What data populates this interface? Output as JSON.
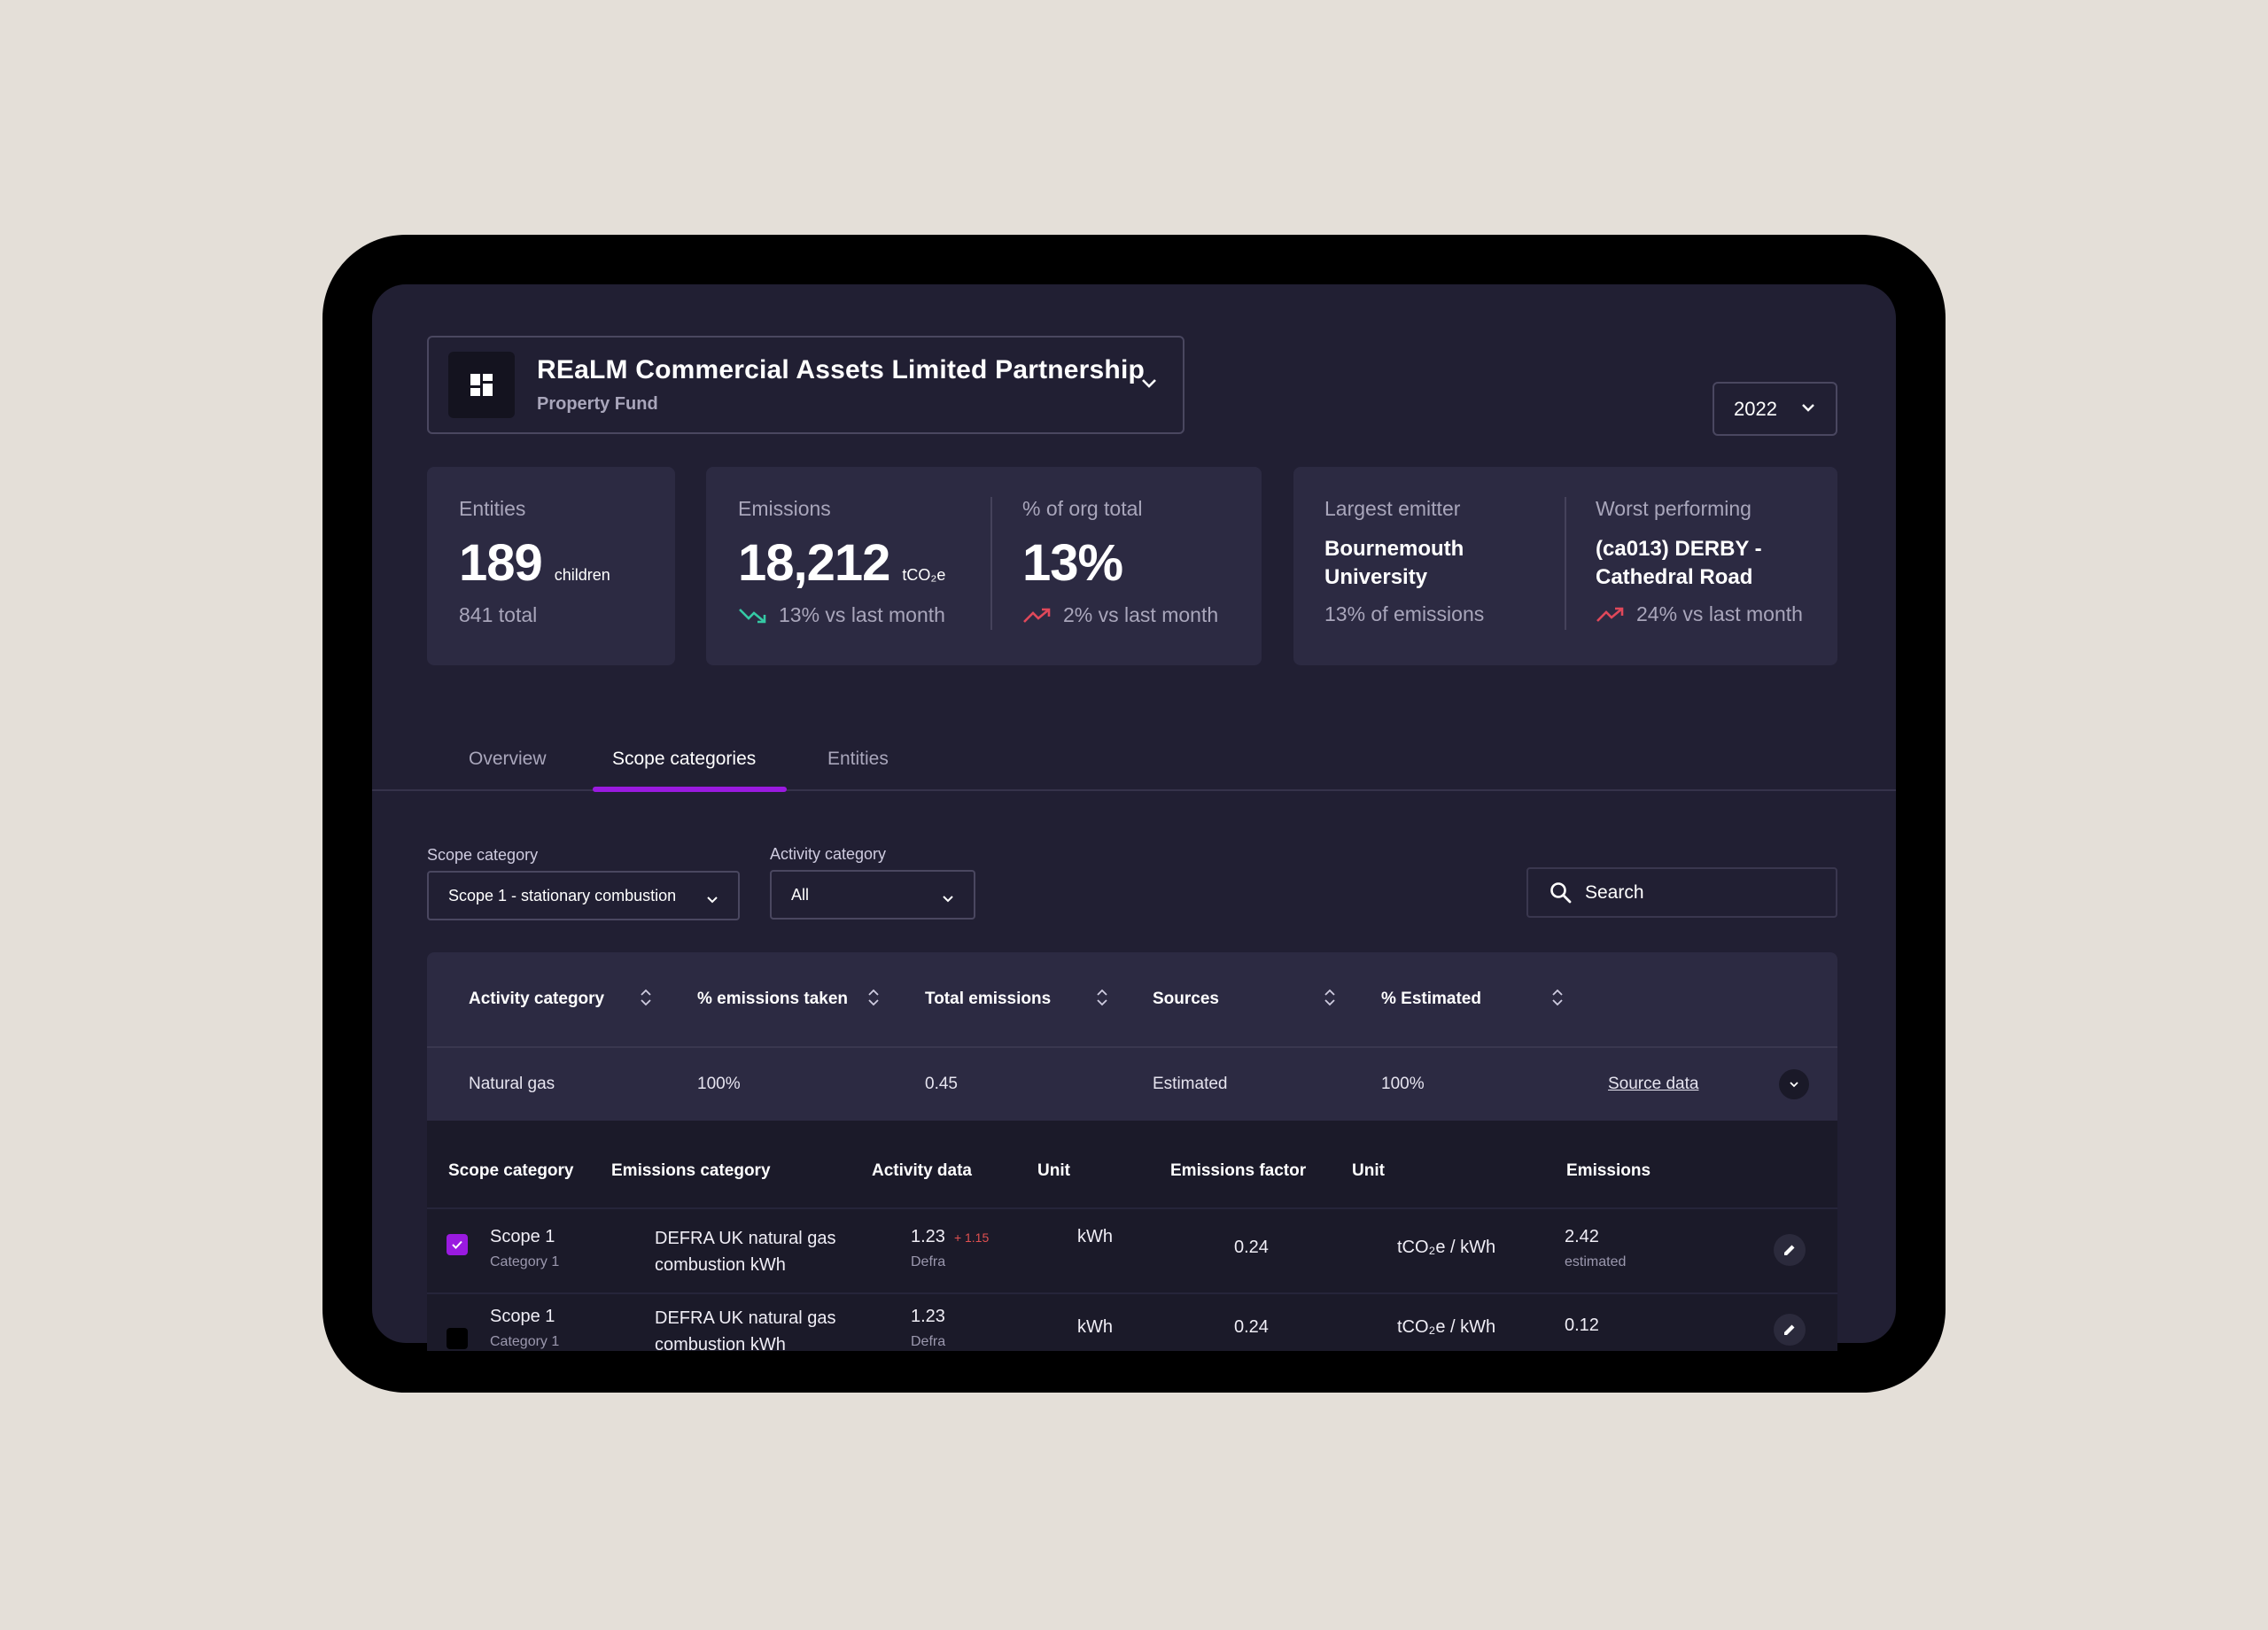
{
  "header": {
    "entity_name": "REaLM Commercial Assets Limited Partnership",
    "entity_type": "Property Fund",
    "year": "2022"
  },
  "stats": {
    "entities": {
      "label": "Entities",
      "value": "189",
      "unit": "children",
      "foot": "841 total"
    },
    "emissions": {
      "label": "Emissions",
      "value": "18,212",
      "unit": "tCO₂e",
      "foot": "13% vs last month",
      "trend": "down"
    },
    "org_total": {
      "label": "% of org total",
      "value": "13%",
      "foot": "2% vs last month",
      "trend": "up"
    },
    "largest": {
      "label": "Largest emitter",
      "name_line1": "Bournemouth",
      "name_line2": "University",
      "foot": "13% of emissions"
    },
    "worst": {
      "label": "Worst performing",
      "name_line1": "(ca013) DERBY -",
      "name_line2": "Cathedral Road",
      "foot": "24% vs last month",
      "trend": "up"
    }
  },
  "tabs": [
    {
      "label": "Overview"
    },
    {
      "label": "Scope categories",
      "active": true
    },
    {
      "label": "Entities"
    }
  ],
  "filters": {
    "scope_label": "Scope category",
    "scope_value": "Scope 1 - stationary combustion",
    "activity_label": "Activity category",
    "activity_value": "All",
    "search_placeholder": "Search"
  },
  "table": {
    "headers": [
      "Activity category",
      "% emissions taken",
      "Total emissions",
      "Sources",
      "% Estimated"
    ],
    "row": {
      "activity": "Natural gas",
      "pct_taken": "100%",
      "total": "0.45",
      "sources": "Estimated",
      "pct_estimated": "100%",
      "link": "Source data"
    }
  },
  "subtable": {
    "headers": [
      "Scope category",
      "Emissions category",
      "Activity data",
      "Unit",
      "Emissions factor",
      "Unit",
      "Emissions"
    ],
    "rows": [
      {
        "scope": "Scope 1",
        "scope_sub": "Category 1",
        "category_line1": "DEFRA UK natural gas",
        "category_line2": "combustion kWh",
        "activity": "1.23",
        "activity_delta": "+ 1.15",
        "activity_sub": "Defra",
        "unit": "kWh",
        "factor": "0.24",
        "factor_unit": "tCO₂e / kWh",
        "emissions": "2.42",
        "emissions_sub": "estimated",
        "checked": true
      },
      {
        "scope": "Scope 1",
        "scope_sub": "Category 1",
        "category_line1": "DEFRA UK natural gas",
        "category_line2": "combustion kWh",
        "activity": "1.23",
        "activity_sub": "Defra",
        "unit": "kWh",
        "factor": "0.24",
        "factor_unit": "tCO₂e / kWh",
        "emissions": "0.12",
        "checked": false
      }
    ]
  },
  "colors": {
    "accent": "#9a1ae0",
    "up_trend": "#e0485a",
    "down_trend": "#35c9a4",
    "background": "#211f33"
  }
}
